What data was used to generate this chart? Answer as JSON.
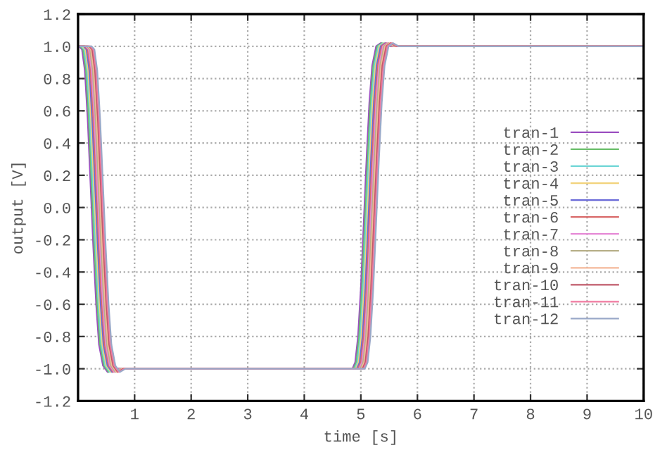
{
  "chart_data": {
    "type": "line",
    "xlabel": "time [s]",
    "ylabel": "output [V]",
    "xlim": [
      0,
      10
    ],
    "xticks": [
      1,
      2,
      3,
      4,
      5,
      6,
      7,
      8,
      9,
      10
    ],
    "ylim": [
      -1.2,
      1.2
    ],
    "yticks": [
      -1.2,
      {
        "value": -1,
        "label": "-1.0"
      },
      -0.8,
      -0.6,
      -0.4,
      -0.2,
      {
        "value": 0,
        "label": "0.0"
      },
      0.2,
      0.4,
      0.6,
      0.8,
      {
        "value": 1,
        "label": "1.0"
      },
      1.2
    ],
    "grid": true,
    "legend": "right",
    "line_style": "solid",
    "series": [
      {
        "name": "tran-1",
        "color": "#9b4fc0",
        "x": [
          0,
          0.02,
          0.07,
          0.12,
          0.17,
          0.22,
          0.27,
          0.32,
          0.37,
          0.44,
          0.52,
          0.62,
          4.85,
          4.9,
          4.95,
          5.0,
          5.05,
          5.1,
          5.15,
          5.2,
          5.27,
          5.35,
          5.45,
          10
        ],
        "values": [
          1.0,
          1.0,
          0.98,
          0.85,
          0.55,
          0.15,
          -0.25,
          -0.6,
          -0.85,
          -0.98,
          -1.02,
          -1.0,
          -1.0,
          -0.96,
          -0.8,
          -0.5,
          -0.1,
          0.3,
          0.65,
          0.88,
          1.0,
          1.02,
          1.0,
          1.0
        ]
      },
      {
        "name": "tran-2",
        "color": "#6bbf6b",
        "x": [
          0,
          0.04,
          0.09,
          0.14,
          0.19,
          0.24,
          0.29,
          0.34,
          0.39,
          0.46,
          0.54,
          0.64,
          4.87,
          4.92,
          4.97,
          5.02,
          5.07,
          5.12,
          5.17,
          5.22,
          5.29,
          5.37,
          5.47,
          10
        ],
        "values": [
          1.0,
          1.0,
          0.98,
          0.85,
          0.55,
          0.15,
          -0.25,
          -0.6,
          -0.85,
          -0.98,
          -1.02,
          -1.0,
          -1.0,
          -0.96,
          -0.8,
          -0.5,
          -0.1,
          0.3,
          0.65,
          0.88,
          1.0,
          1.02,
          1.0,
          1.0
        ]
      },
      {
        "name": "tran-3",
        "color": "#6fd6d6",
        "x": [
          0,
          0.06,
          0.11,
          0.16,
          0.21,
          0.26,
          0.31,
          0.36,
          0.41,
          0.48,
          0.56,
          0.66,
          4.89,
          4.94,
          4.99,
          5.04,
          5.09,
          5.14,
          5.19,
          5.24,
          5.31,
          5.39,
          5.49,
          10
        ],
        "values": [
          1.0,
          1.0,
          0.98,
          0.85,
          0.55,
          0.15,
          -0.25,
          -0.6,
          -0.85,
          -0.98,
          -1.02,
          -1.0,
          -1.0,
          -0.96,
          -0.8,
          -0.5,
          -0.1,
          0.3,
          0.65,
          0.88,
          1.0,
          1.02,
          1.0,
          1.0
        ]
      },
      {
        "name": "tran-4",
        "color": "#f2d27a",
        "x": [
          0,
          0.08,
          0.13,
          0.18,
          0.23,
          0.28,
          0.33,
          0.38,
          0.43,
          0.5,
          0.58,
          0.68,
          4.91,
          4.96,
          5.01,
          5.06,
          5.11,
          5.16,
          5.21,
          5.26,
          5.33,
          5.41,
          5.51,
          10
        ],
        "values": [
          1.0,
          1.0,
          0.98,
          0.85,
          0.55,
          0.15,
          -0.25,
          -0.6,
          -0.85,
          -0.98,
          -1.02,
          -1.0,
          -1.0,
          -0.96,
          -0.8,
          -0.5,
          -0.1,
          0.3,
          0.65,
          0.88,
          1.0,
          1.02,
          1.0,
          1.0
        ]
      },
      {
        "name": "tran-5",
        "color": "#6a6ad8",
        "x": [
          0,
          0.1,
          0.15,
          0.2,
          0.25,
          0.3,
          0.35,
          0.4,
          0.45,
          0.52,
          0.6,
          0.7,
          4.93,
          4.98,
          5.03,
          5.08,
          5.13,
          5.18,
          5.23,
          5.28,
          5.35,
          5.43,
          5.53,
          10
        ],
        "values": [
          1.0,
          1.0,
          0.98,
          0.85,
          0.55,
          0.15,
          -0.25,
          -0.6,
          -0.85,
          -0.98,
          -1.02,
          -1.0,
          -1.0,
          -0.96,
          -0.8,
          -0.5,
          -0.1,
          0.3,
          0.65,
          0.88,
          1.0,
          1.02,
          1.0,
          1.0
        ]
      },
      {
        "name": "tran-6",
        "color": "#d96a6a",
        "x": [
          0,
          0.12,
          0.17,
          0.22,
          0.27,
          0.32,
          0.37,
          0.42,
          0.47,
          0.54,
          0.62,
          0.72,
          4.95,
          5.0,
          5.05,
          5.1,
          5.15,
          5.2,
          5.25,
          5.3,
          5.37,
          5.45,
          5.55,
          10
        ],
        "values": [
          1.0,
          1.0,
          0.98,
          0.85,
          0.55,
          0.15,
          -0.25,
          -0.6,
          -0.85,
          -0.98,
          -1.02,
          -1.0,
          -1.0,
          -0.96,
          -0.8,
          -0.5,
          -0.1,
          0.3,
          0.65,
          0.88,
          1.0,
          1.02,
          1.0,
          1.0
        ]
      },
      {
        "name": "tran-7",
        "color": "#e68ad6",
        "x": [
          0,
          0.14,
          0.19,
          0.24,
          0.29,
          0.34,
          0.39,
          0.44,
          0.49,
          0.56,
          0.64,
          0.74,
          4.97,
          5.02,
          5.07,
          5.12,
          5.17,
          5.22,
          5.27,
          5.32,
          5.39,
          5.47,
          5.57,
          10
        ],
        "values": [
          1.0,
          1.0,
          0.98,
          0.85,
          0.55,
          0.15,
          -0.25,
          -0.6,
          -0.85,
          -0.98,
          -1.02,
          -1.0,
          -1.0,
          -0.96,
          -0.8,
          -0.5,
          -0.1,
          0.3,
          0.65,
          0.88,
          1.0,
          1.02,
          1.0,
          1.0
        ]
      },
      {
        "name": "tran-8",
        "color": "#b8b08a",
        "x": [
          0,
          0.16,
          0.21,
          0.26,
          0.31,
          0.36,
          0.41,
          0.46,
          0.51,
          0.58,
          0.66,
          0.76,
          4.99,
          5.04,
          5.09,
          5.14,
          5.19,
          5.24,
          5.29,
          5.34,
          5.41,
          5.49,
          5.59,
          10
        ],
        "values": [
          1.0,
          1.0,
          0.98,
          0.85,
          0.55,
          0.15,
          -0.25,
          -0.6,
          -0.85,
          -0.98,
          -1.02,
          -1.0,
          -1.0,
          -0.96,
          -0.8,
          -0.5,
          -0.1,
          0.3,
          0.65,
          0.88,
          1.0,
          1.02,
          1.0,
          1.0
        ]
      },
      {
        "name": "tran-9",
        "color": "#f4b89a",
        "x": [
          0,
          0.18,
          0.23,
          0.28,
          0.33,
          0.38,
          0.43,
          0.48,
          0.53,
          0.6,
          0.68,
          0.78,
          5.01,
          5.06,
          5.11,
          5.16,
          5.21,
          5.26,
          5.31,
          5.36,
          5.43,
          5.51,
          5.61,
          10
        ],
        "values": [
          1.0,
          1.0,
          0.98,
          0.85,
          0.55,
          0.15,
          -0.25,
          -0.6,
          -0.85,
          -0.98,
          -1.02,
          -1.0,
          -1.0,
          -0.96,
          -0.8,
          -0.5,
          -0.1,
          0.3,
          0.65,
          0.88,
          1.0,
          1.02,
          1.0,
          1.0
        ]
      },
      {
        "name": "tran-10",
        "color": "#c05a6a",
        "x": [
          0,
          0.2,
          0.25,
          0.3,
          0.35,
          0.4,
          0.45,
          0.5,
          0.55,
          0.62,
          0.7,
          0.8,
          5.03,
          5.08,
          5.13,
          5.18,
          5.23,
          5.28,
          5.33,
          5.38,
          5.45,
          5.53,
          5.63,
          10
        ],
        "values": [
          1.0,
          1.0,
          0.98,
          0.85,
          0.55,
          0.15,
          -0.25,
          -0.6,
          -0.85,
          -0.98,
          -1.02,
          -1.0,
          -1.0,
          -0.96,
          -0.8,
          -0.5,
          -0.1,
          0.3,
          0.65,
          0.88,
          1.0,
          1.02,
          1.0,
          1.0
        ]
      },
      {
        "name": "tran-11",
        "color": "#f07aa0",
        "x": [
          0,
          0.22,
          0.27,
          0.32,
          0.37,
          0.42,
          0.47,
          0.52,
          0.57,
          0.64,
          0.72,
          0.82,
          5.05,
          5.1,
          5.15,
          5.2,
          5.25,
          5.3,
          5.35,
          5.4,
          5.47,
          5.55,
          5.65,
          10
        ],
        "values": [
          1.0,
          1.0,
          0.98,
          0.85,
          0.55,
          0.15,
          -0.25,
          -0.6,
          -0.85,
          -0.98,
          -1.02,
          -1.0,
          -1.0,
          -0.96,
          -0.8,
          -0.5,
          -0.1,
          0.3,
          0.65,
          0.88,
          1.0,
          1.02,
          1.0,
          1.0
        ]
      },
      {
        "name": "tran-12",
        "color": "#9aa8c8",
        "x": [
          0,
          0.24,
          0.29,
          0.34,
          0.39,
          0.44,
          0.49,
          0.54,
          0.59,
          0.66,
          0.74,
          0.84,
          5.07,
          5.12,
          5.17,
          5.22,
          5.27,
          5.32,
          5.37,
          5.42,
          5.49,
          5.57,
          5.67,
          10
        ],
        "values": [
          1.0,
          1.0,
          0.98,
          0.85,
          0.55,
          0.15,
          -0.25,
          -0.6,
          -0.85,
          -0.98,
          -1.02,
          -1.0,
          -1.0,
          -0.96,
          -0.8,
          -0.5,
          -0.1,
          0.3,
          0.65,
          0.88,
          1.0,
          1.02,
          1.0,
          1.0
        ]
      }
    ]
  }
}
